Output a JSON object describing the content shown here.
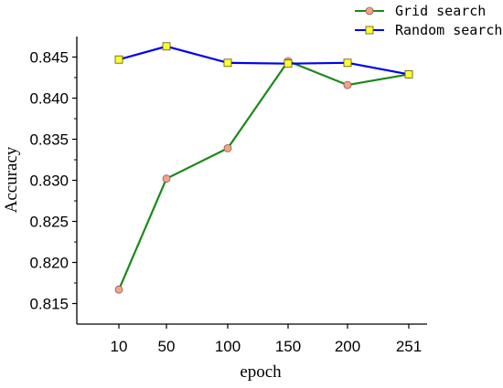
{
  "chart_data": {
    "type": "line",
    "title": "",
    "xlabel": "epoch",
    "ylabel": "Accuracy",
    "categories": [
      "10",
      "50",
      "100",
      "150",
      "200",
      "251"
    ],
    "ylim": [
      0.8125,
      0.8475
    ],
    "yticks": [
      "0.815",
      "0.820",
      "0.825",
      "0.830",
      "0.835",
      "0.840",
      "0.845"
    ],
    "grid": false,
    "legend_position": "top-right",
    "series": [
      {
        "name": "Grid search",
        "values": [
          0.8167,
          0.8302,
          0.8339,
          0.8445,
          0.8416,
          0.8429
        ],
        "line_color": "#1a8a1a",
        "marker": "circle",
        "marker_color": "#f4a38a"
      },
      {
        "name": "Random search",
        "values": [
          0.8447,
          0.8463,
          0.8443,
          0.8442,
          0.8443,
          0.8429
        ],
        "line_color": "#0000ee",
        "marker": "square",
        "marker_color": "#ffff33"
      }
    ]
  }
}
